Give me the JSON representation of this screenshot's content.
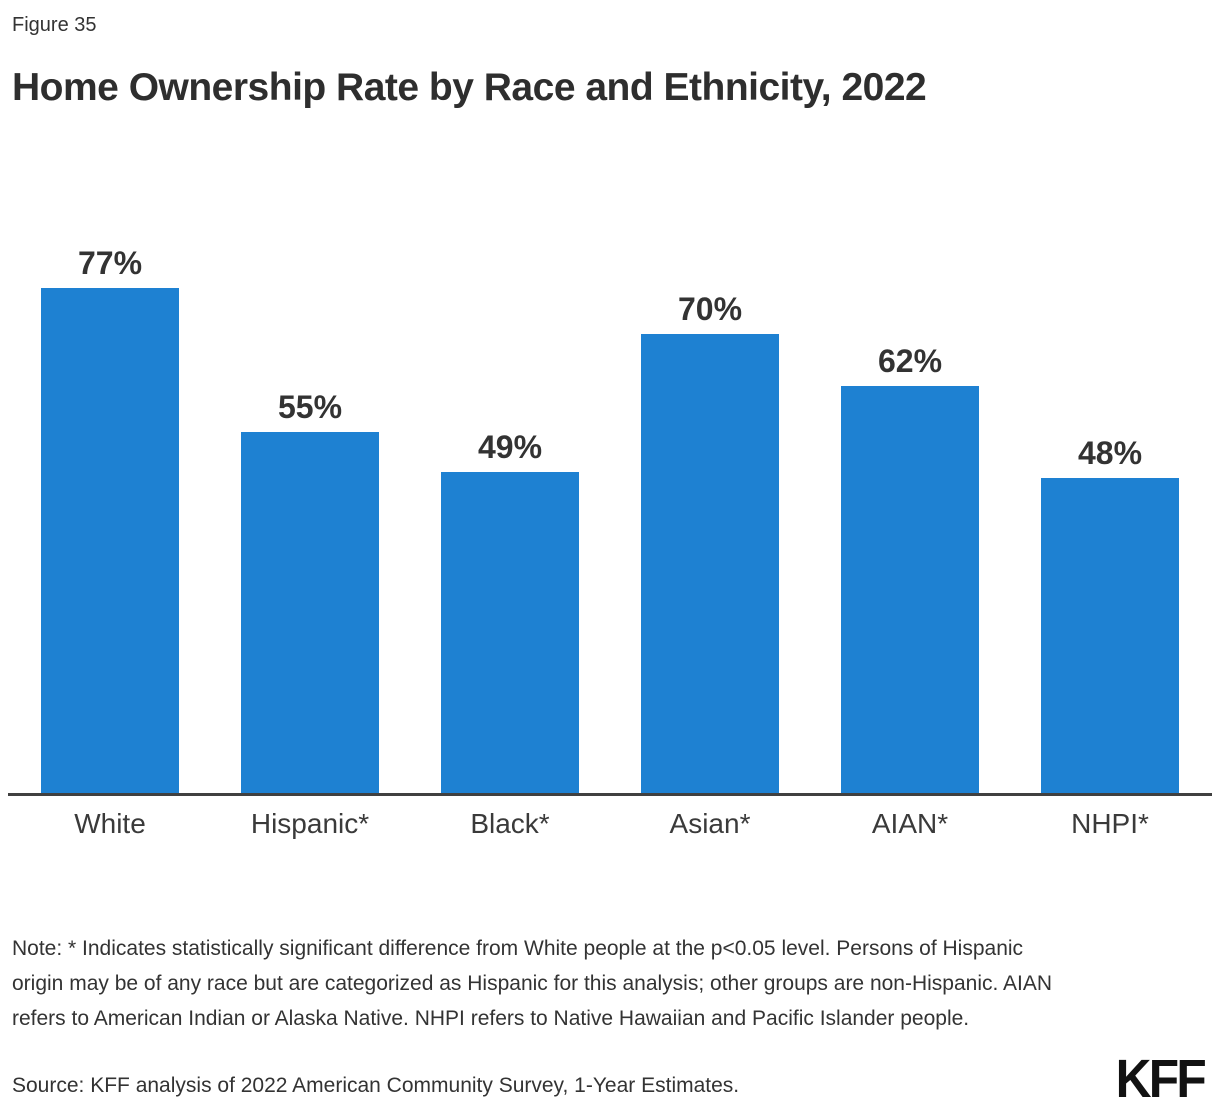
{
  "figure_label": "Figure 35",
  "title": "Home Ownership Rate by Race and Ethnicity, 2022",
  "chart_data": {
    "type": "bar",
    "categories": [
      "White",
      "Hispanic*",
      "Black*",
      "Asian*",
      "AIAN*",
      "NHPI*"
    ],
    "values": [
      77,
      55,
      49,
      70,
      62,
      48
    ],
    "value_labels": [
      "77%",
      "55%",
      "49%",
      "70%",
      "62%",
      "48%"
    ],
    "title": "Home Ownership Rate by Race and Ethnicity, 2022",
    "xlabel": "",
    "ylabel": "",
    "ylim": [
      0,
      85
    ],
    "grid": false,
    "legend": false,
    "bar_color": "#1e81d2",
    "axis_color": "#404040",
    "label_color": "#333333"
  },
  "note": "Note: * Indicates statistically significant difference from White people at the p<0.05 level. Persons of Hispanic origin may be of any race but are categorized as Hispanic for this analysis; other groups are non-Hispanic. AIAN refers to American Indian or Alaska Native. NHPI refers to Native Hawaiian and Pacific Islander people.",
  "source": "Source: KFF analysis of 2022 American Community Survey, 1-Year Estimates.",
  "logo_text": "KFF",
  "colors": {
    "bar": "#1e81d2",
    "axis": "#404040",
    "text": "#333333",
    "logo": "#121212"
  }
}
